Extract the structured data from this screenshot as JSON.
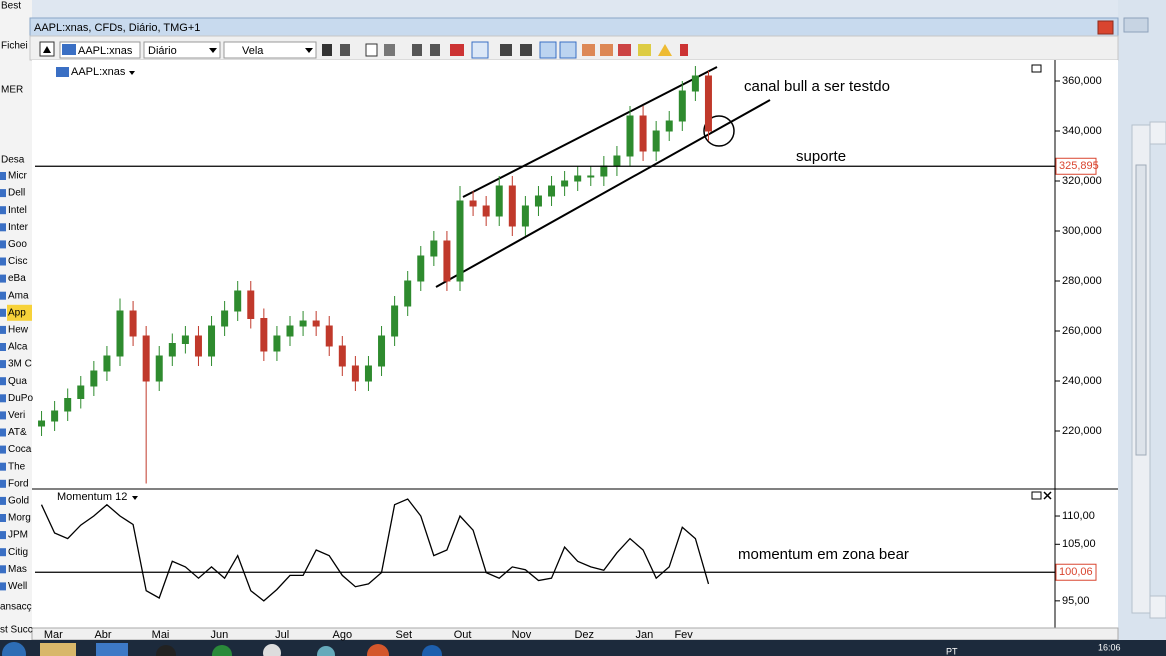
{
  "window": {
    "title": "AAPL:xnas, CFDs, Diário, TMG+1"
  },
  "toolbar": {
    "symbol": "AAPL:xnas",
    "period": "Diário",
    "chart_style": "Vela"
  },
  "sidebar": {
    "top": [
      "Best",
      "Fichei",
      "MER",
      "Desa"
    ],
    "instruments": [
      "Micr",
      "Dell",
      "Intel",
      "Inter",
      "Goo",
      "Cisc",
      "eBa",
      "Ama",
      "App",
      "Hew",
      "Alca",
      "3M C",
      "Qua",
      "DuPo",
      "Veri",
      "AT&",
      "Coca",
      "The",
      "Ford",
      "Gold",
      "Morg",
      "JPM",
      "Citig",
      "Mas",
      "Well"
    ],
    "bottom": [
      "ansacç",
      "st Succ"
    ]
  },
  "taskbar": {
    "language": "PT",
    "time": "16:06"
  },
  "chart_data": [
    {
      "type": "candlestick",
      "title": "AAPL:xnas",
      "open": [
        222,
        224,
        228,
        233,
        238,
        244,
        250,
        268,
        258,
        240,
        250,
        255,
        258,
        250,
        262,
        268,
        276,
        265,
        252,
        258,
        262,
        264,
        262,
        254,
        246,
        240,
        246,
        258,
        270,
        280,
        290,
        296,
        280,
        312,
        310,
        306,
        318,
        302,
        310,
        314,
        318,
        320,
        322,
        322,
        326,
        330,
        346,
        332,
        340,
        344,
        356,
        362
      ],
      "high": [
        228,
        232,
        237,
        242,
        248,
        254,
        273,
        272,
        262,
        254,
        259,
        262,
        262,
        266,
        272,
        280,
        280,
        269,
        262,
        266,
        268,
        268,
        266,
        258,
        250,
        250,
        262,
        274,
        284,
        294,
        300,
        300,
        318,
        316,
        314,
        322,
        322,
        314,
        318,
        322,
        324,
        326,
        326,
        330,
        334,
        350,
        350,
        344,
        348,
        360,
        366,
        364
      ],
      "low": [
        218,
        220,
        224,
        229,
        234,
        240,
        246,
        254,
        199,
        236,
        246,
        251,
        246,
        246,
        258,
        264,
        261,
        248,
        248,
        254,
        258,
        258,
        250,
        242,
        236,
        236,
        242,
        254,
        266,
        276,
        286,
        276,
        276,
        306,
        302,
        302,
        298,
        298,
        306,
        310,
        314,
        316,
        318,
        318,
        322,
        326,
        328,
        328,
        336,
        340,
        352,
        336
      ],
      "close": [
        224,
        228,
        233,
        238,
        244,
        250,
        268,
        258,
        240,
        250,
        255,
        258,
        250,
        262,
        268,
        276,
        265,
        252,
        258,
        262,
        264,
        262,
        254,
        246,
        240,
        246,
        258,
        270,
        280,
        290,
        296,
        280,
        312,
        310,
        306,
        318,
        302,
        310,
        314,
        318,
        320,
        322,
        322,
        326,
        330,
        346,
        332,
        340,
        344,
        356,
        362,
        340
      ],
      "up_color": "#2e8b2e",
      "down_color": "#c0392b",
      "xlim": [
        0,
        52
      ],
      "xticks": [
        {
          "value": 1.4,
          "label": "Mar"
        },
        {
          "value": 5.2,
          "label": "Abr"
        },
        {
          "value": 9.6,
          "label": "Mai"
        },
        {
          "value": 14.1,
          "label": "Jun"
        },
        {
          "value": 18.9,
          "label": "Jul"
        },
        {
          "value": 23.5,
          "label": "Ago"
        },
        {
          "value": 28.2,
          "label": "Set"
        },
        {
          "value": 32.7,
          "label": "Out"
        },
        {
          "value": 37.2,
          "label": "Nov"
        },
        {
          "value": 42.0,
          "label": "Dez"
        },
        {
          "value": 46.6,
          "label": "Jan"
        },
        {
          "value": 49.6,
          "label": "Fev"
        }
      ],
      "ylim": [
        197.2,
        368.4
      ],
      "yticks": [
        {
          "value": 220,
          "label": "220,000"
        },
        {
          "value": 240,
          "label": "240,000"
        },
        {
          "value": 260,
          "label": "260,000"
        },
        {
          "value": 280,
          "label": "280,000"
        },
        {
          "value": 300,
          "label": "300,000"
        },
        {
          "value": 320,
          "label": "320,000"
        },
        {
          "value": 340,
          "label": "340,000"
        },
        {
          "value": 360,
          "label": "360,000"
        }
      ],
      "reference": {
        "value": 325.895,
        "label": "325,895"
      },
      "annotations": [
        "canal bull a ser testdo",
        "suporte"
      ]
    },
    {
      "type": "line",
      "title": "Momentum 12",
      "color": "#000000",
      "values": [
        112,
        107,
        106,
        108.4,
        110,
        112,
        110,
        108.5,
        96.8,
        95.5,
        102,
        101,
        99,
        101,
        99,
        103,
        96.8,
        95,
        97,
        99.5,
        99.5,
        104,
        103,
        99.5,
        97.5,
        98,
        100,
        112,
        113,
        110,
        103,
        104,
        110,
        107.5,
        100,
        99,
        101,
        100.5,
        98.6,
        99,
        104.5,
        102,
        101,
        100.4,
        103.5,
        106,
        104,
        99,
        101,
        108,
        106,
        98
      ],
      "ylim": [
        90.2,
        114.6
      ],
      "yticks": [
        {
          "value": 95,
          "label": "95,00"
        },
        {
          "value": 105,
          "label": "105,00"
        },
        {
          "value": 110,
          "label": "110,00"
        }
      ],
      "reference": {
        "value": 100.06,
        "label": "100,06"
      },
      "annotations": [
        "momentum em zona bear"
      ]
    }
  ]
}
